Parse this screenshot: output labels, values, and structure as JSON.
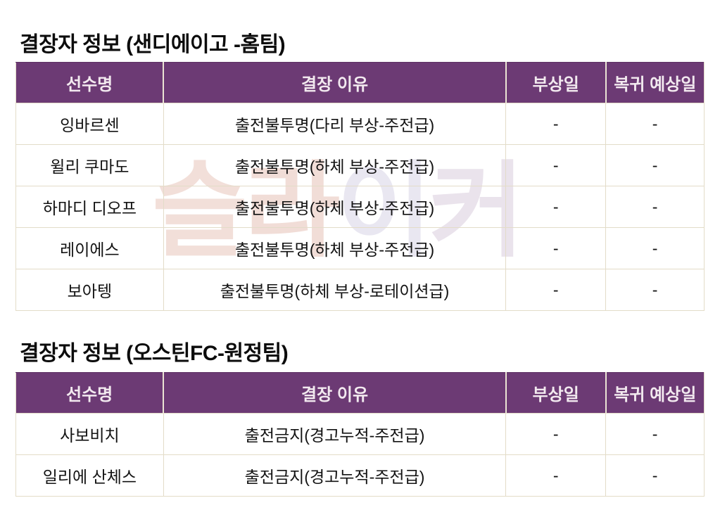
{
  "colors": {
    "header_bg": "#6c3a74",
    "header_text": "#f2e9ef",
    "table_border": "#e3dcc8",
    "body_text": "#131313",
    "title_text": "#0c0c0c",
    "page_bg": "#ffffff"
  },
  "watermark": {
    "text": "슬라이커",
    "chars": [
      {
        "ch": "슬",
        "color": "#f2dfd9"
      },
      {
        "ch": "라",
        "color": "#f1ddd7"
      },
      {
        "ch": "이",
        "color": "#e9e7f1"
      },
      {
        "ch": "커",
        "color": "#eae3ec"
      }
    ]
  },
  "sections": [
    {
      "title": "결장자 정보 (샌디에이고 -홈팀)",
      "columns": [
        "선수명",
        "결장 이유",
        "부상일",
        "복귀 예상일"
      ],
      "rows": [
        [
          "잉바르센",
          "출전불투명(다리 부상-주전급)",
          "-",
          "-"
        ],
        [
          "윌리 쿠마도",
          "출전불투명(하체 부상-주전급)",
          "-",
          "-"
        ],
        [
          "하마디 디오프",
          "출전불투명(하체 부상-주전급)",
          "-",
          "-"
        ],
        [
          "레이에스",
          "출전불투명(하체 부상-주전급)",
          "-",
          "-"
        ],
        [
          "보아텡",
          "출전불투명(하체 부상-로테이션급)",
          "-",
          "-"
        ]
      ]
    },
    {
      "title": "결장자 정보 (오스틴FC-원정팀)",
      "columns": [
        "선수명",
        "결장 이유",
        "부상일",
        "복귀 예상일"
      ],
      "rows": [
        [
          "사보비치",
          "출전금지(경고누적-주전급)",
          "-",
          "-"
        ],
        [
          "일리에 산체스",
          "출전금지(경고누적-주전급)",
          "-",
          "-"
        ]
      ]
    }
  ]
}
